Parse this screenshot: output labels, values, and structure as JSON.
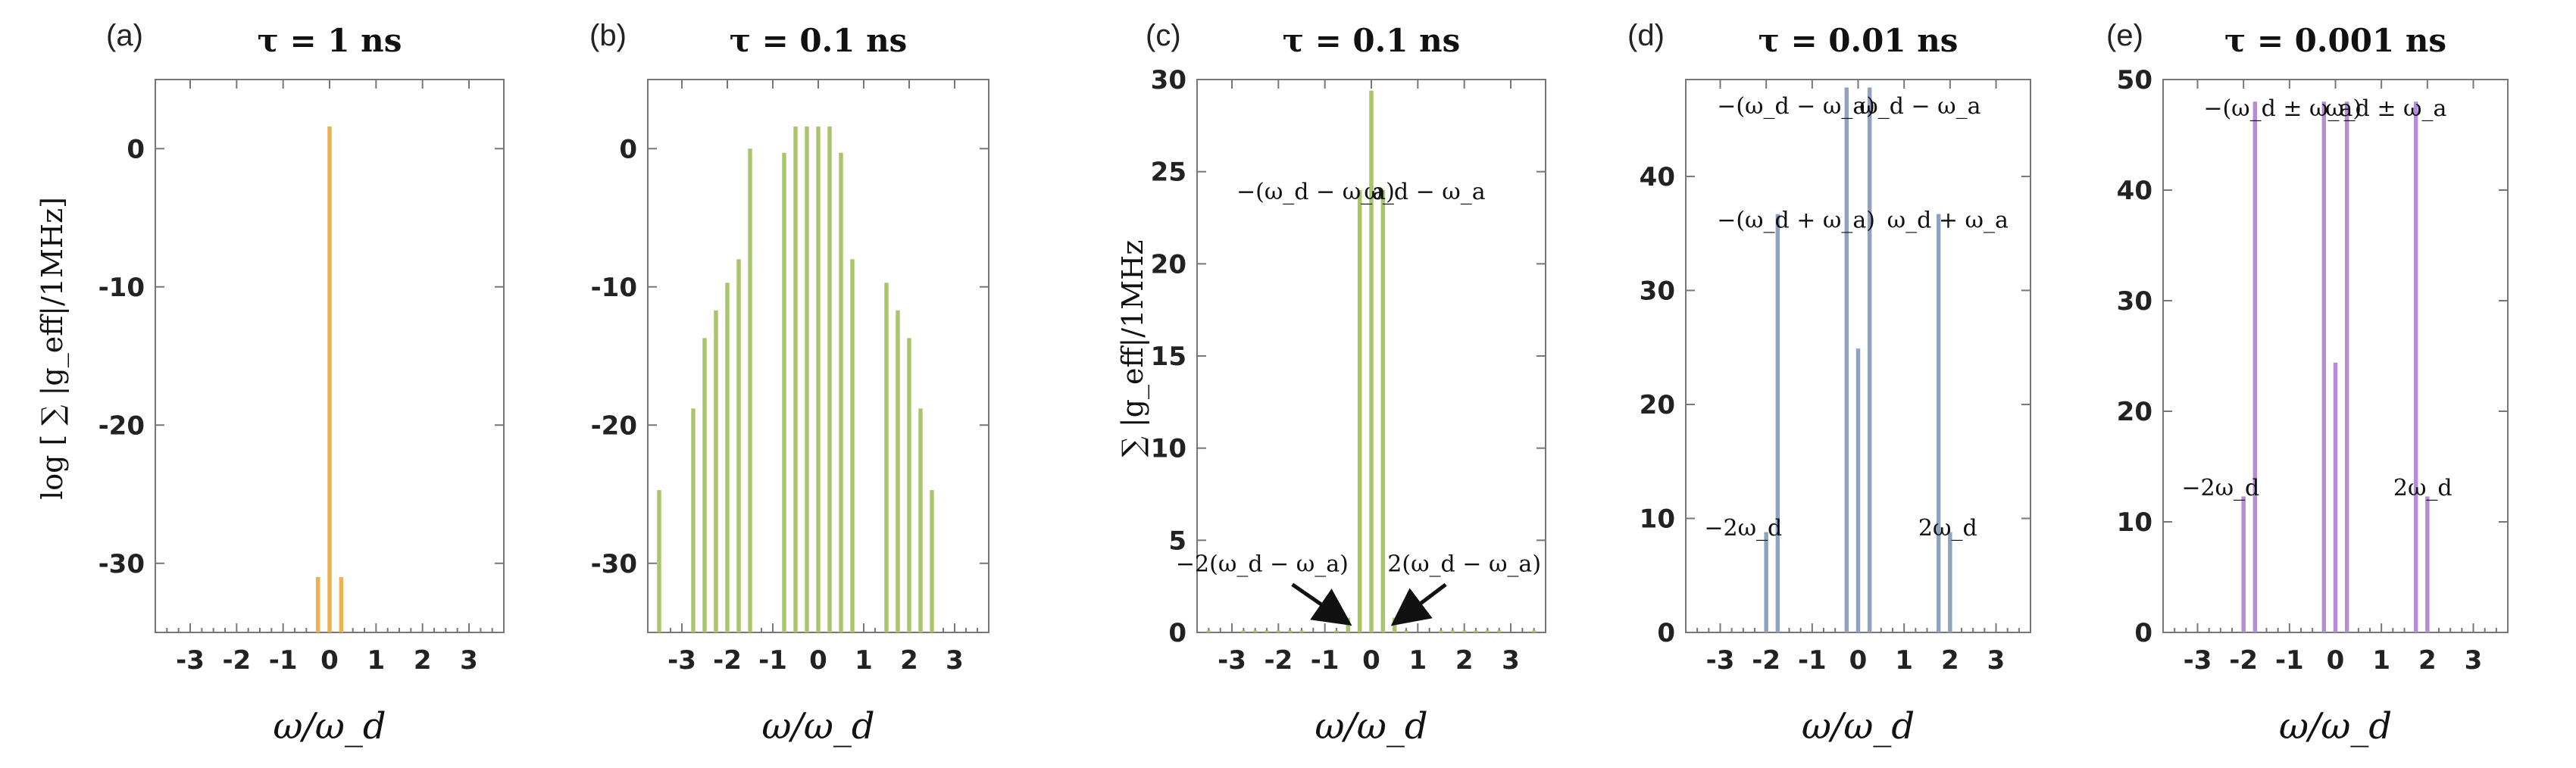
{
  "figure": {
    "ylabel_log": "log [ ∑ |g_eff|/1MHz]",
    "ylabel_lin": "∑ |g_eff|/1MHz"
  },
  "chart_data": [
    {
      "panel": "(a)",
      "type": "bar",
      "title": "τ = 1 ns",
      "xlabel": "ω/ω_d",
      "ylabel": "log [ ∑ |g_eff|/1MHz]",
      "color": "#ECB152",
      "xlim": [
        -3.75,
        3.75
      ],
      "ylim": [
        -35,
        5
      ],
      "xticks": [
        -3,
        -2,
        -1,
        0,
        1,
        2,
        3
      ],
      "xtick_labels": [
        "-3",
        "-2",
        "-1",
        "0",
        "1",
        "2",
        "3"
      ],
      "yticks": [
        0,
        -10,
        -20,
        -30
      ],
      "ytick_labels": [
        "0",
        "-10",
        "-20",
        "-30"
      ],
      "baseline": -35,
      "x": [
        -0.25,
        0,
        0.25
      ],
      "values": [
        -31,
        1.6,
        -31
      ],
      "annotations": []
    },
    {
      "panel": "(b)",
      "type": "bar",
      "title": "τ = 0.1 ns",
      "xlabel": "ω/ω_d",
      "ylabel": "",
      "color": "#A9C56A",
      "xlim": [
        -3.75,
        3.75
      ],
      "ylim": [
        -35,
        5
      ],
      "xticks": [
        -3,
        -2,
        -1,
        0,
        1,
        2,
        3
      ],
      "xtick_labels": [
        "-3",
        "-2",
        "-1",
        "0",
        "1",
        "2",
        "3"
      ],
      "yticks": [
        0,
        -10,
        -20,
        -30
      ],
      "ytick_labels": [
        "0",
        "-10",
        "-20",
        "-30"
      ],
      "baseline": -35,
      "x": [
        -3.5,
        -2.75,
        -2.5,
        -2.25,
        -2.0,
        -1.75,
        -1.5,
        -0.75,
        -0.5,
        -0.25,
        0,
        0.25,
        0.5,
        0.75,
        1.5,
        1.75,
        2.0,
        2.25,
        2.5,
        2.75,
        3.5
      ],
      "values": [
        -24.7,
        -18.8,
        -13.7,
        -11.7,
        -9.7,
        -8.0,
        0,
        -0.3,
        1.6,
        1.6,
        1.6,
        1.6,
        -0.3,
        -8.0,
        -9.7,
        -11.7,
        -13.7,
        -18.8,
        -24.7,
        -35,
        -35
      ],
      "annotations": []
    },
    {
      "panel": "(c)",
      "type": "bar",
      "title": "τ = 0.1 ns",
      "xlabel": "ω/ω_d",
      "ylabel": "∑ |g_eff|/1MHz",
      "color": "#A9C56A",
      "xlim": [
        -3.75,
        3.75
      ],
      "ylim": [
        0,
        30
      ],
      "xticks": [
        -3,
        -2,
        -1,
        0,
        1,
        2,
        3
      ],
      "xtick_labels": [
        "-3",
        "-2",
        "-1",
        "0",
        "1",
        "2",
        "3"
      ],
      "yticks": [
        0,
        5,
        10,
        15,
        20,
        25,
        30
      ],
      "ytick_labels": [
        "0",
        "5",
        "10",
        "15",
        "20",
        "25",
        "30"
      ],
      "baseline": 0,
      "x": [
        -3.5,
        -2.75,
        -2.5,
        -2.25,
        -2.0,
        -1.75,
        -1.5,
        -0.75,
        -0.5,
        -0.25,
        0,
        0.25,
        0.5,
        0.75,
        1.5,
        1.75,
        2.0,
        2.25,
        2.5,
        2.75,
        3.5
      ],
      "values": [
        0.1,
        0.1,
        0.1,
        0.1,
        0.1,
        0.1,
        0.1,
        0.1,
        0.8,
        24.0,
        29.4,
        24.0,
        0.8,
        0.1,
        0.1,
        0.1,
        0.1,
        0.1,
        0.1,
        0.1,
        0.1
      ],
      "annotations": [
        {
          "text": "−(ω_d − ω_a)",
          "x": -1.2,
          "y": 23.5
        },
        {
          "text": "ω_d − ω_a",
          "x": 1.15,
          "y": 23.5
        },
        {
          "text": "−2(ω_d − ω_a)",
          "x": -2.35,
          "y": 3.3
        },
        {
          "text": "2(ω_d − ω_a)",
          "x": 2.0,
          "y": 3.3
        }
      ]
    },
    {
      "panel": "(d)",
      "type": "bar",
      "title": "τ = 0.01 ns",
      "xlabel": "ω/ω_d",
      "ylabel": "",
      "color": "#8FA3C0",
      "xlim": [
        -3.75,
        3.75
      ],
      "ylim": [
        0,
        48.5
      ],
      "xticks": [
        -3,
        -2,
        -1,
        0,
        1,
        2,
        3
      ],
      "xtick_labels": [
        "-3",
        "-2",
        "-1",
        "0",
        "1",
        "2",
        "3"
      ],
      "yticks": [
        0,
        10,
        20,
        30,
        40
      ],
      "ytick_labels": [
        "0",
        "10",
        "20",
        "30",
        "40"
      ],
      "baseline": 0,
      "x": [
        -2.0,
        -1.75,
        -0.25,
        0,
        0.25,
        1.75,
        2.0
      ],
      "values": [
        8.8,
        36.7,
        47.8,
        24.9,
        47.8,
        36.7,
        8.8
      ],
      "annotations": [
        {
          "text": "−(ω_d − ω_a)",
          "x": -1.35,
          "y": 45.5
        },
        {
          "text": "ω_d − ω_a",
          "x": 1.35,
          "y": 45.5
        },
        {
          "text": "−(ω_d + ω_a)",
          "x": -1.35,
          "y": 35.5
        },
        {
          "text": "ω_d + ω_a",
          "x": 1.95,
          "y": 35.5
        },
        {
          "text": "−2ω_d",
          "x": -2.5,
          "y": 8.5
        },
        {
          "text": "2ω_d",
          "x": 1.95,
          "y": 8.5
        }
      ]
    },
    {
      "panel": "(e)",
      "type": "bar",
      "title": "τ = 0.001 ns",
      "xlabel": "ω/ω_d",
      "ylabel": "",
      "color": "#B48DD6",
      "xlim": [
        -3.75,
        3.75
      ],
      "ylim": [
        0,
        50
      ],
      "xticks": [
        -3,
        -2,
        -1,
        0,
        1,
        2,
        3
      ],
      "xtick_labels": [
        "-3",
        "-2",
        "-1",
        "0",
        "1",
        "2",
        "3"
      ],
      "yticks": [
        0,
        10,
        20,
        30,
        40,
        50
      ],
      "ytick_labels": [
        "0",
        "10",
        "20",
        "30",
        "40",
        "50"
      ],
      "baseline": 0,
      "x": [
        -2.0,
        -1.75,
        -0.25,
        0,
        0.25,
        1.75,
        2.0
      ],
      "values": [
        12.3,
        48.0,
        48.0,
        24.4,
        48.0,
        48.0,
        12.3
      ],
      "annotations": [
        {
          "text": "−(ω_d ± ω_a)",
          "x": -1.15,
          "y": 46.7
        },
        {
          "text": "ω_d ± ω_a",
          "x": 1.1,
          "y": 46.7
        },
        {
          "text": "−2ω_d",
          "x": -2.5,
          "y": 12.4
        },
        {
          "text": "2ω_d",
          "x": 1.9,
          "y": 12.4
        }
      ]
    }
  ]
}
